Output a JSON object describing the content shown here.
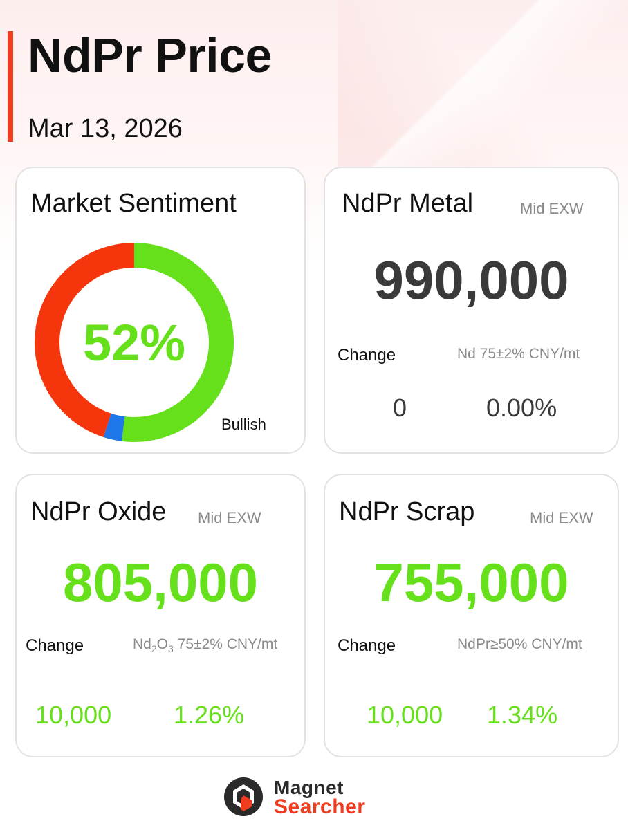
{
  "header": {
    "title": "NdPr Price",
    "date": "Mar 13, 2026"
  },
  "colors": {
    "accent": "#f03c1e",
    "bullish_green": "#66e01b",
    "bearish_red": "#f5350c",
    "neutral_blue": "#1e76e8",
    "neutral_price": "#3a3a3a"
  },
  "sentiment": {
    "title": "Market Sentiment",
    "percent_label": "52%",
    "legend_label": "Bullish",
    "segments": [
      {
        "name": "bullish",
        "fraction": 0.52,
        "color": "#66e01b"
      },
      {
        "name": "neutral",
        "fraction": 0.03,
        "color": "#1e76e8"
      },
      {
        "name": "bearish",
        "fraction": 0.45,
        "color": "#f5350c"
      }
    ]
  },
  "metal": {
    "title": "NdPr Metal",
    "basis": "Mid  EXW",
    "price": "990,000",
    "change_label": "Change",
    "spec": "Nd 75±2% CNY/mt",
    "change_value": "0",
    "change_percent": "0.00%"
  },
  "oxide": {
    "title": "NdPr Oxide",
    "basis": "Mid  EXW",
    "price": "805,000",
    "change_label": "Change",
    "spec_prefix": "Nd",
    "spec_sub1": "2",
    "spec_mid": "O",
    "spec_sub2": "3",
    "spec_suffix": " 75±2% CNY/mt",
    "change_value": "10,000",
    "change_percent": "1.26%"
  },
  "scrap": {
    "title": "NdPr Scrap",
    "basis": "Mid  EXW",
    "price": "755,000",
    "change_label": "Change",
    "spec": "NdPr≥50% CNY/mt",
    "change_value": "10,000",
    "change_percent": "1.34%"
  },
  "footer": {
    "brand_line1": "Magnet",
    "brand_line2": "Searcher",
    "logo_icon": "magnet-searcher-logo-icon"
  }
}
